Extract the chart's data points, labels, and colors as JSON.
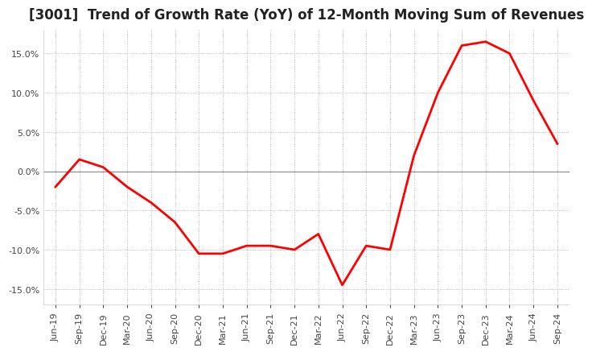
{
  "title": "[3001]  Trend of Growth Rate (YoY) of 12-Month Moving Sum of Revenues",
  "title_fontsize": 12,
  "background_color": "#ffffff",
  "plot_bg_color": "#ffffff",
  "line_color": "#ff0000",
  "line_width": 2.0,
  "ylim": [
    -17,
    18
  ],
  "yticks": [
    -15.0,
    -10.0,
    -5.0,
    0.0,
    5.0,
    10.0,
    15.0
  ],
  "grid_color": "#aaaaaa",
  "zero_line_color": "#888888",
  "x_labels": [
    "Jun-19",
    "Sep-19",
    "Dec-19",
    "Mar-20",
    "Jun-20",
    "Sep-20",
    "Dec-20",
    "Mar-21",
    "Jun-21",
    "Sep-21",
    "Dec-21",
    "Mar-22",
    "Jun-22",
    "Sep-22",
    "Dec-22",
    "Mar-23",
    "Jun-23",
    "Sep-23",
    "Dec-23",
    "Mar-24",
    "Jun-24",
    "Sep-24"
  ],
  "y_values": [
    -2.0,
    1.5,
    0.5,
    -2.0,
    -4.0,
    -6.5,
    -10.5,
    -10.5,
    -9.5,
    -9.5,
    -10.0,
    -8.0,
    -14.5,
    -9.5,
    -10.0,
    2.0,
    10.0,
    16.0,
    16.5,
    15.0,
    9.0,
    3.5
  ]
}
